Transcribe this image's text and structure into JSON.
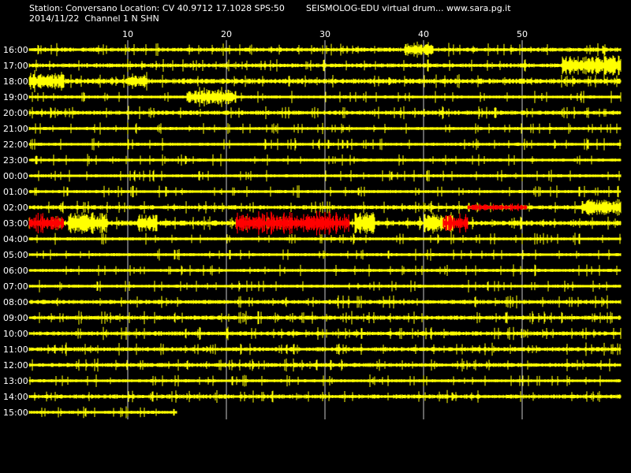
{
  "header": {
    "station_line": "Station: Conversano Location: CV 40.9712 17.1028 SPS:50",
    "date_line": "2014/11/22  Channel 1 N SHN",
    "title": "SEISMOLOG-EDU virtual drum... www.sara.pg.it"
  },
  "colors": {
    "background": "#000000",
    "trace": "#ffff00",
    "event": "#ff0000",
    "grid": "#c8c8c8",
    "text": "#ffffff"
  },
  "chart_data": {
    "type": "line",
    "title": "SEISMOLOG-EDU virtual drum... www.sara.pg.it",
    "xlabel": "",
    "ylabel": "",
    "x_ticks": [
      10,
      20,
      30,
      40,
      50
    ],
    "xlim": [
      0,
      60
    ],
    "grid": true,
    "rows": [
      {
        "label": "16:00",
        "end_minute": 60,
        "noise": 2.0,
        "bursts": [
          {
            "from": 38,
            "to": 41,
            "amp": 4
          }
        ]
      },
      {
        "label": "17:00",
        "end_minute": 60,
        "noise": 2.0,
        "bursts": [
          {
            "from": 54,
            "to": 60,
            "amp": 8
          }
        ]
      },
      {
        "label": "18:00",
        "end_minute": 60,
        "noise": 2.5,
        "bursts": [
          {
            "from": 0,
            "to": 3.5,
            "amp": 6
          },
          {
            "from": 10,
            "to": 12,
            "amp": 4
          }
        ]
      },
      {
        "label": "19:00",
        "end_minute": 60,
        "noise": 1.5,
        "bursts": [
          {
            "from": 16,
            "to": 21,
            "amp": 6
          }
        ]
      },
      {
        "label": "20:00",
        "end_minute": 60,
        "noise": 2.0,
        "bursts": []
      },
      {
        "label": "21:00",
        "end_minute": 60,
        "noise": 1.5,
        "bursts": []
      },
      {
        "label": "22:00",
        "end_minute": 60,
        "noise": 1.5,
        "bursts": []
      },
      {
        "label": "23:00",
        "end_minute": 60,
        "noise": 1.5,
        "bursts": []
      },
      {
        "label": "00:00",
        "end_minute": 60,
        "noise": 1.5,
        "bursts": []
      },
      {
        "label": "01:00",
        "end_minute": 60,
        "noise": 1.5,
        "bursts": []
      },
      {
        "label": "02:00",
        "end_minute": 60,
        "noise": 2.0,
        "bursts": [
          {
            "from": 56,
            "to": 60,
            "amp": 6
          }
        ],
        "events": [
          {
            "from": 44.5,
            "to": 50.5,
            "amp": 5
          }
        ]
      },
      {
        "label": "03:00",
        "end_minute": 60,
        "noise": 2.5,
        "bursts": [
          {
            "from": 4,
            "to": 8,
            "amp": 8
          },
          {
            "from": 11,
            "to": 13,
            "amp": 7
          },
          {
            "from": 33,
            "to": 35,
            "amp": 9
          },
          {
            "from": 40,
            "to": 43,
            "amp": 8
          }
        ],
        "events": [
          {
            "from": 0,
            "to": 3.5,
            "amp": 13
          },
          {
            "from": 21,
            "to": 32.5,
            "amp": 15
          },
          {
            "from": 42,
            "to": 44.5,
            "amp": 12
          }
        ]
      },
      {
        "label": "04:00",
        "end_minute": 60,
        "noise": 1.5,
        "bursts": []
      },
      {
        "label": "05:00",
        "end_minute": 60,
        "noise": 1.5,
        "bursts": []
      },
      {
        "label": "06:00",
        "end_minute": 60,
        "noise": 1.5,
        "bursts": []
      },
      {
        "label": "07:00",
        "end_minute": 60,
        "noise": 1.5,
        "bursts": []
      },
      {
        "label": "08:00",
        "end_minute": 60,
        "noise": 2.0,
        "bursts": []
      },
      {
        "label": "09:00",
        "end_minute": 60,
        "noise": 2.0,
        "bursts": []
      },
      {
        "label": "10:00",
        "end_minute": 60,
        "noise": 2.0,
        "bursts": []
      },
      {
        "label": "11:00",
        "end_minute": 60,
        "noise": 2.0,
        "bursts": []
      },
      {
        "label": "12:00",
        "end_minute": 60,
        "noise": 2.0,
        "bursts": []
      },
      {
        "label": "13:00",
        "end_minute": 60,
        "noise": 1.5,
        "bursts": []
      },
      {
        "label": "14:00",
        "end_minute": 60,
        "noise": 2.0,
        "bursts": []
      },
      {
        "label": "15:00",
        "end_minute": 15,
        "noise": 1.5,
        "bursts": []
      }
    ]
  }
}
